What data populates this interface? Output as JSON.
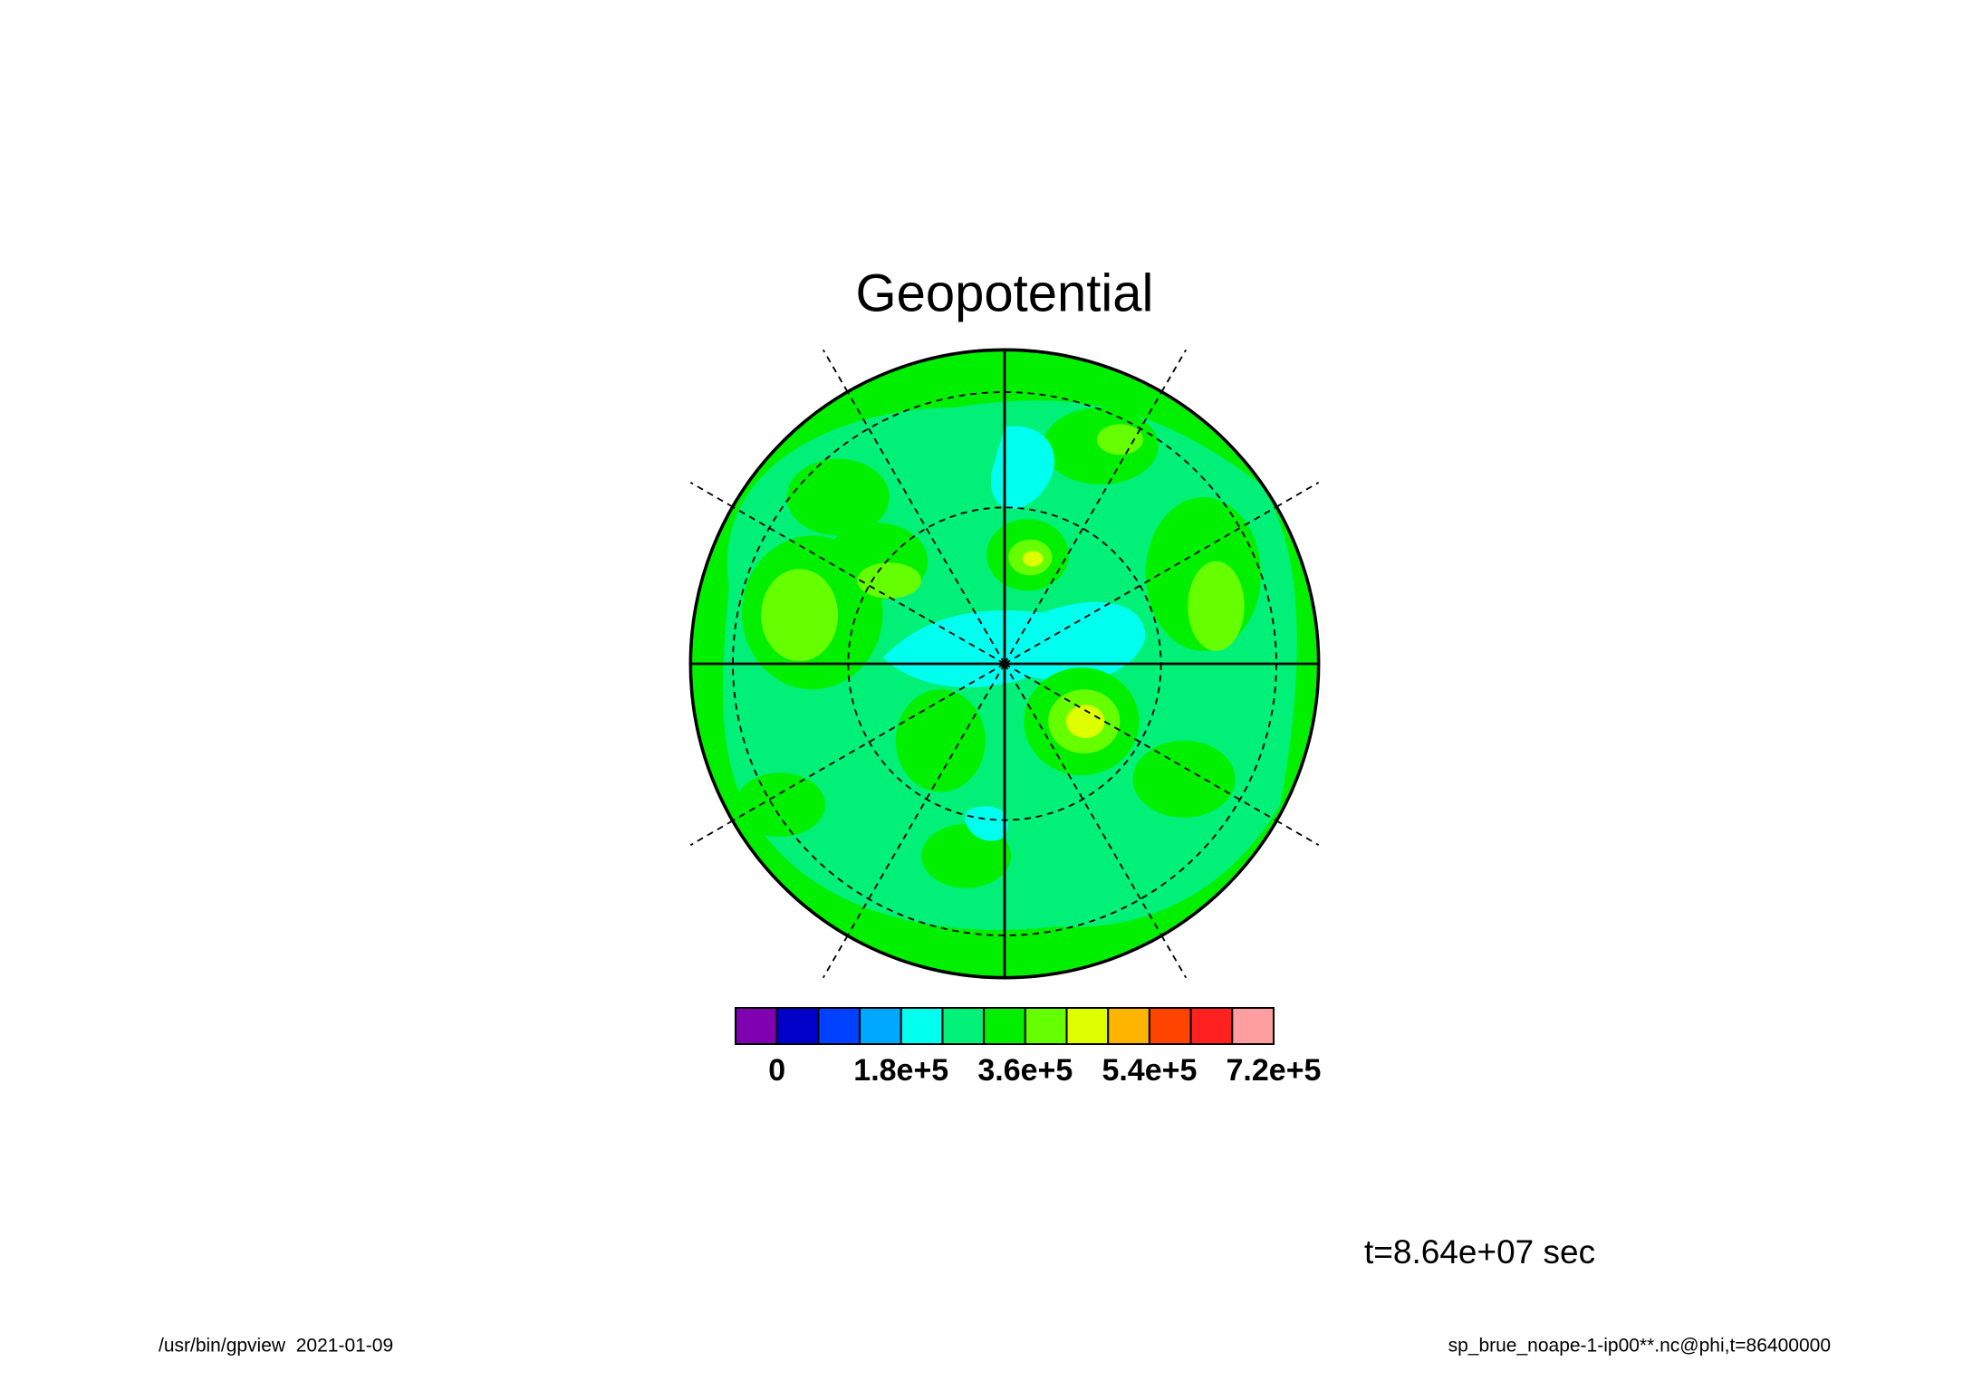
{
  "chart_data": {
    "type": "contour",
    "title": "Geopotential",
    "colorbar": {
      "levels": [
        -60000,
        0,
        60000,
        120000,
        180000,
        240000,
        300000,
        360000,
        420000,
        480000,
        540000,
        600000,
        660000,
        720000
      ],
      "colors": [
        "#7f00b0",
        "#0000c8",
        "#0040ff",
        "#00a8ff",
        "#00ffee",
        "#00f078",
        "#00f000",
        "#66ff00",
        "#ddff00",
        "#ffb400",
        "#ff4400",
        "#ff2020",
        "#ff9e9e"
      ],
      "ticks": [
        {
          "value": 0,
          "label": "0"
        },
        {
          "value": 180000,
          "label": "1.8e+5"
        },
        {
          "value": 360000,
          "label": "3.6e+5"
        },
        {
          "value": 540000,
          "label": "5.4e+5"
        },
        {
          "value": 720000,
          "label": "7.2e+5"
        }
      ]
    },
    "time_label": "t=8.64e+07 sec",
    "footer": {
      "left": "/usr/bin/gpview  2021-01-09",
      "right": "sp_brue_noape-1-ip00**.nc@phi,t=86400000"
    }
  }
}
